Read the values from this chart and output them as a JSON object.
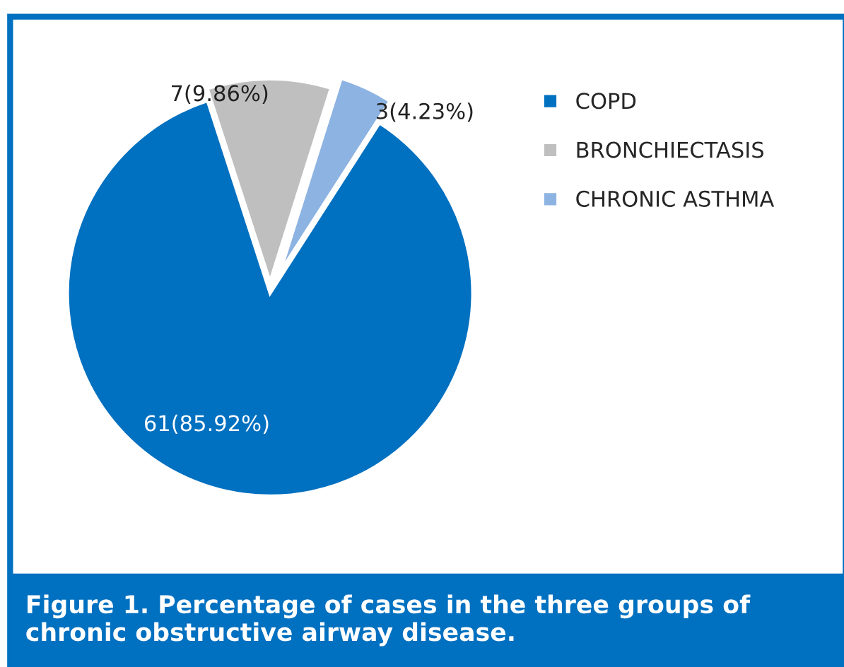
{
  "chart_data": {
    "type": "pie",
    "title": "Figure 1. Percentage of cases in the three groups of chronic obstructive airway disease.",
    "categories": [
      "COPD",
      "BRONCHIECTASIS",
      "CHRONIC ASTHMA"
    ],
    "values": [
      61,
      7,
      3
    ],
    "value_labels": [
      "61(85.92%)",
      "7(9.86%)",
      "3(4.23%)"
    ],
    "colors": [
      "#0070c0",
      "#bfbfbf",
      "#8db3e2"
    ],
    "legend": "right"
  }
}
